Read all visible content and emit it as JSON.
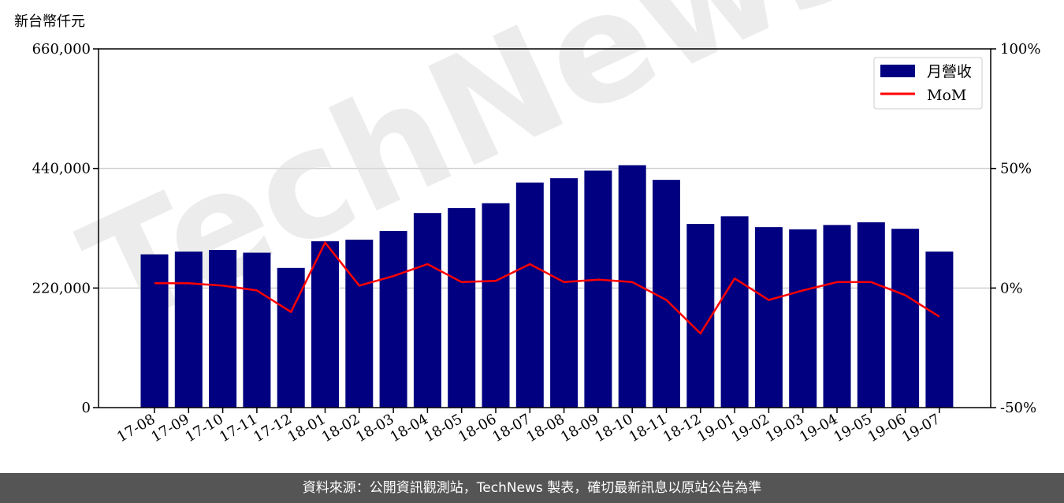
{
  "chart_data": {
    "type": "bar",
    "unit_label": "新台幣仟元",
    "categories": [
      "17-08",
      "17-09",
      "17-10",
      "17-11",
      "17-12",
      "18-01",
      "18-02",
      "18-03",
      "18-04",
      "18-05",
      "18-06",
      "18-07",
      "18-08",
      "18-09",
      "18-10",
      "18-11",
      "18-12",
      "19-01",
      "19-02",
      "19-03",
      "19-04",
      "19-05",
      "19-06",
      "19-07"
    ],
    "series": [
      {
        "name": "月營收",
        "axis": "left",
        "type": "bar",
        "color": "#000080",
        "values": [
          282000,
          287000,
          290000,
          285000,
          257000,
          306000,
          309000,
          325000,
          358000,
          367000,
          376000,
          414000,
          422000,
          436000,
          446000,
          419000,
          338000,
          352000,
          332000,
          328000,
          336000,
          341000,
          329000,
          287000
        ]
      },
      {
        "name": "MoM",
        "axis": "right",
        "type": "line",
        "color": "#ff0000",
        "values": [
          2,
          2,
          1,
          -1,
          -10,
          19,
          1,
          5,
          10,
          2.5,
          3,
          10,
          2.5,
          3.5,
          2.5,
          -5,
          -19,
          4,
          -5,
          -1,
          2.5,
          2.5,
          -3,
          -12
        ]
      }
    ],
    "y_left": {
      "lim": [
        0,
        660000
      ],
      "ticks": [
        0,
        220000,
        440000,
        660000
      ],
      "tick_labels": [
        "0",
        "220,000",
        "440,000",
        "660,000"
      ]
    },
    "y_right": {
      "lim": [
        -50,
        100
      ],
      "ticks": [
        -50,
        0,
        50,
        100
      ],
      "tick_labels": [
        "-50%",
        "0%",
        "50%",
        "100%"
      ]
    },
    "grid": "horizontal",
    "legend": "top-right",
    "watermark": "TechNews"
  },
  "footer": {
    "text": "資料來源：公開資訊觀測站，TechNews 製表，確切最新訊息以原站公告為準"
  }
}
